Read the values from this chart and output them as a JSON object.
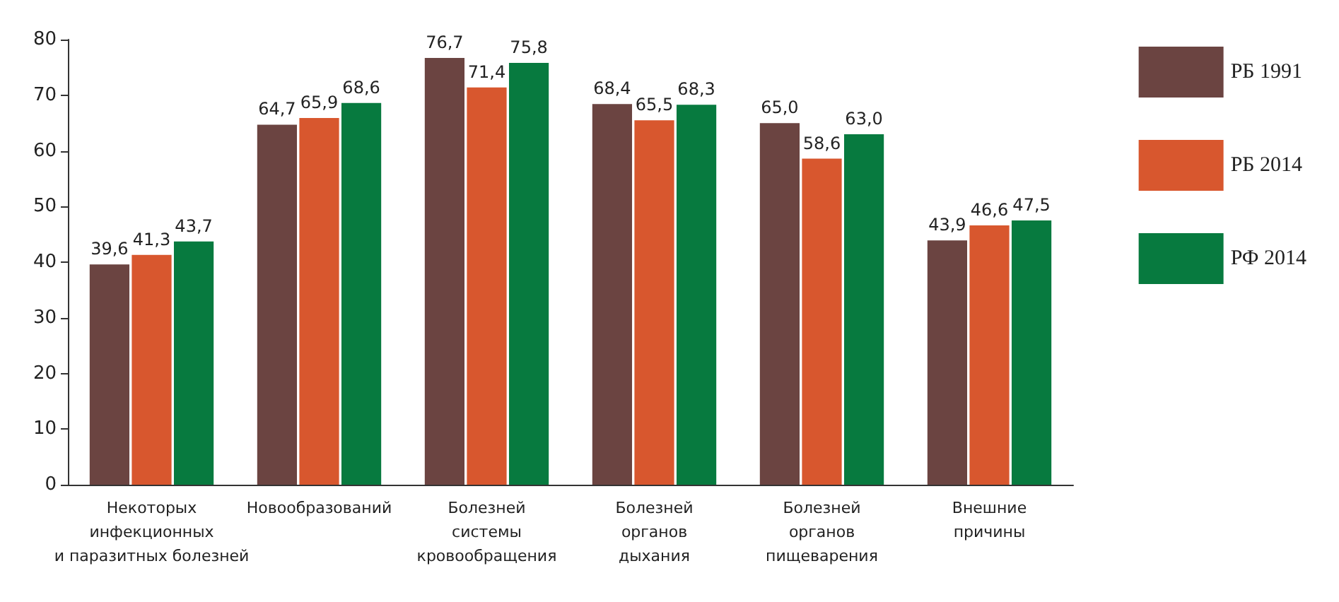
{
  "chart_data": {
    "type": "bar",
    "categories": [
      "Некоторых\nинфекционных\nи паразитных болезней",
      "Новообразований",
      "Болезней\nсистемы\nкровообращения",
      "Болезней\nорганов\nдыхания",
      "Болезней\nорганов\nпищеварения",
      "Внешние\nпричины"
    ],
    "series": [
      {
        "name": "РБ 1991",
        "color": "#6b4441",
        "values": [
          39.6,
          64.7,
          76.7,
          68.4,
          65.0,
          43.9
        ],
        "value_labels": [
          "39,6",
          "64,7",
          "76,7",
          "68,4",
          "65,0",
          "43,9"
        ]
      },
      {
        "name": "РБ 2014",
        "color": "#d8572e",
        "values": [
          41.3,
          65.9,
          71.4,
          65.5,
          58.6,
          46.6
        ],
        "value_labels": [
          "41,3",
          "65,9",
          "71,4",
          "65,5",
          "58,6",
          "46,6"
        ]
      },
      {
        "name": "РФ 2014",
        "color": "#077a3f",
        "values": [
          43.7,
          68.6,
          75.8,
          68.3,
          63.0,
          47.5
        ],
        "value_labels": [
          "43,7",
          "68,6",
          "75,8",
          "68,3",
          "63,0",
          "47,5"
        ]
      }
    ],
    "ylim": [
      0,
      80
    ],
    "yticks": [
      0,
      10,
      20,
      30,
      40,
      50,
      60,
      70,
      80
    ],
    "grid": false,
    "legend": "right"
  }
}
